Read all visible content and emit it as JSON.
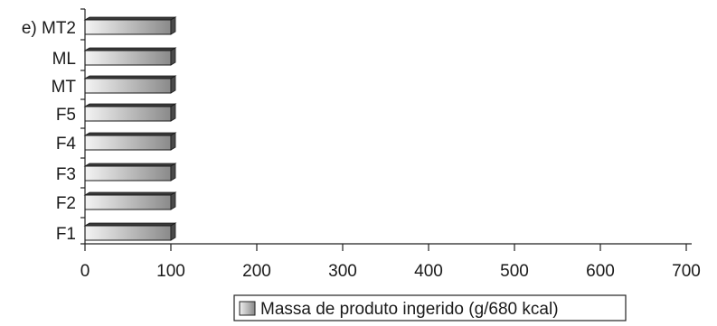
{
  "chart_data": {
    "type": "bar",
    "orientation": "horizontal",
    "panel_label": "e)",
    "categories": [
      "F1",
      "F2",
      "F3",
      "F4",
      "F5",
      "MT",
      "ML",
      "MT2"
    ],
    "series": [
      {
        "name": "Massa de produto ingerido (g/680 kcal)",
        "values": [
          100,
          100,
          100,
          100,
          100,
          100,
          100,
          100
        ],
        "color": "#a9a9a9"
      }
    ],
    "x_ticks": [
      "0",
      "100",
      "200",
      "300",
      "400",
      "500",
      "600",
      "700"
    ],
    "xlim": [
      0,
      700
    ],
    "xlabel": "",
    "ylabel": "",
    "title": "",
    "grid": false,
    "legend_position": "bottom"
  }
}
